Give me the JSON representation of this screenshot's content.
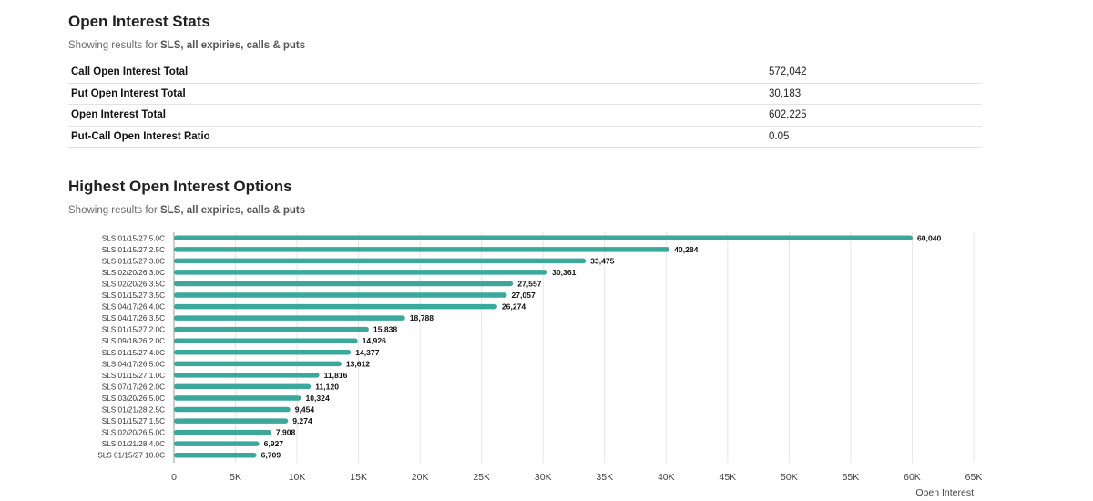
{
  "stats_section": {
    "title": "Open Interest Stats",
    "subtitle_prefix": "Showing results for ",
    "subtitle_bold": "SLS, all expiries, calls & puts",
    "rows": [
      {
        "label": "Call Open Interest Total",
        "value": "572,042"
      },
      {
        "label": "Put Open Interest Total",
        "value": "30,183"
      },
      {
        "label": "Open Interest Total",
        "value": "602,225"
      },
      {
        "label": "Put-Call Open Interest Ratio",
        "value": "0.05"
      }
    ]
  },
  "chart_section": {
    "title": "Highest Open Interest Options",
    "subtitle_prefix": "Showing results for ",
    "subtitle_bold": "SLS, all expiries, calls & puts"
  },
  "colors": {
    "bar": "#3aa89a",
    "grid": "#e6e6e6",
    "axis": "#9a9a9a"
  },
  "chart_data": {
    "type": "bar",
    "orientation": "horizontal",
    "title": "Highest Open Interest Options",
    "xlabel": "Open Interest",
    "ylabel": "",
    "xlim": [
      0,
      65000
    ],
    "xticks": [
      0,
      5000,
      10000,
      15000,
      20000,
      25000,
      30000,
      35000,
      40000,
      45000,
      50000,
      55000,
      60000,
      65000
    ],
    "xtick_labels": [
      "0",
      "5K",
      "10K",
      "15K",
      "20K",
      "25K",
      "30K",
      "35K",
      "40K",
      "45K",
      "50K",
      "55K",
      "60K",
      "65K"
    ],
    "grid": true,
    "categories": [
      "SLS 01/15/27 5.0C",
      "SLS 01/15/27 2.5C",
      "SLS 01/15/27 3.0C",
      "SLS 02/20/26 3.0C",
      "SLS 02/20/26 3.5C",
      "SLS 01/15/27 3.5C",
      "SLS 04/17/26 4.0C",
      "SLS 04/17/26 3.5C",
      "SLS 01/15/27 2.0C",
      "SLS 09/18/26 2.0C",
      "SLS 01/15/27 4.0C",
      "SLS 04/17/26 5.0C",
      "SLS 01/15/27 1.0C",
      "SLS 07/17/26 2.0C",
      "SLS 03/20/26 5.0C",
      "SLS 01/21/28 2.5C",
      "SLS 01/15/27 1.5C",
      "SLS 02/20/26 5.0C",
      "SLS 01/21/28 4.0C",
      "SLS 01/15/27 10.0C"
    ],
    "values": [
      60040,
      40284,
      33475,
      30361,
      27557,
      27057,
      26274,
      18788,
      15838,
      14926,
      14377,
      13612,
      11816,
      11120,
      10324,
      9454,
      9274,
      7908,
      6927,
      6709
    ],
    "value_labels": [
      "60,040",
      "40,284",
      "33,475",
      "30,361",
      "27,557",
      "27,057",
      "26,274",
      "18,788",
      "15,838",
      "14,926",
      "14,377",
      "13,612",
      "11,816",
      "11,120",
      "10,324",
      "9,454",
      "9,274",
      "7,908",
      "6,927",
      "6,709"
    ]
  }
}
